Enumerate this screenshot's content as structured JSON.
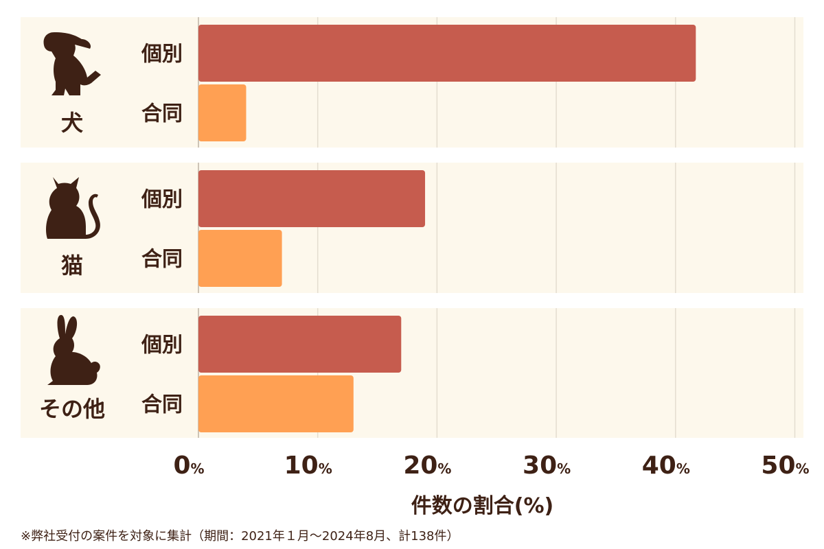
{
  "chart_data": {
    "type": "bar",
    "orientation": "horizontal",
    "groups": [
      {
        "name": "犬",
        "icon": "dog-icon"
      },
      {
        "name": "猫",
        "icon": "cat-icon"
      },
      {
        "name": "その他",
        "icon": "rabbit-icon"
      }
    ],
    "bar_labels": [
      "個別",
      "合同"
    ],
    "series": [
      {
        "name": "個別",
        "color": "#c65c4e",
        "values": [
          41.7,
          19.0,
          17.0
        ]
      },
      {
        "name": "合同",
        "color": "#ffa053",
        "values": [
          4.0,
          7.0,
          13.0
        ]
      }
    ],
    "xticks": [
      "0",
      "10",
      "20",
      "30",
      "40",
      "50"
    ],
    "xtick_unit": "%",
    "xlim": [
      0,
      50
    ],
    "xlabel": "件数の割合(%)",
    "grid": true,
    "panel_color": "#fdf8ec",
    "grid_color": "#e4ddd0",
    "text_color": "#3e2115"
  },
  "footnote": "※弊社受付の案件を対象に集計（期間：2021年１月～2024年8月、計138件）"
}
